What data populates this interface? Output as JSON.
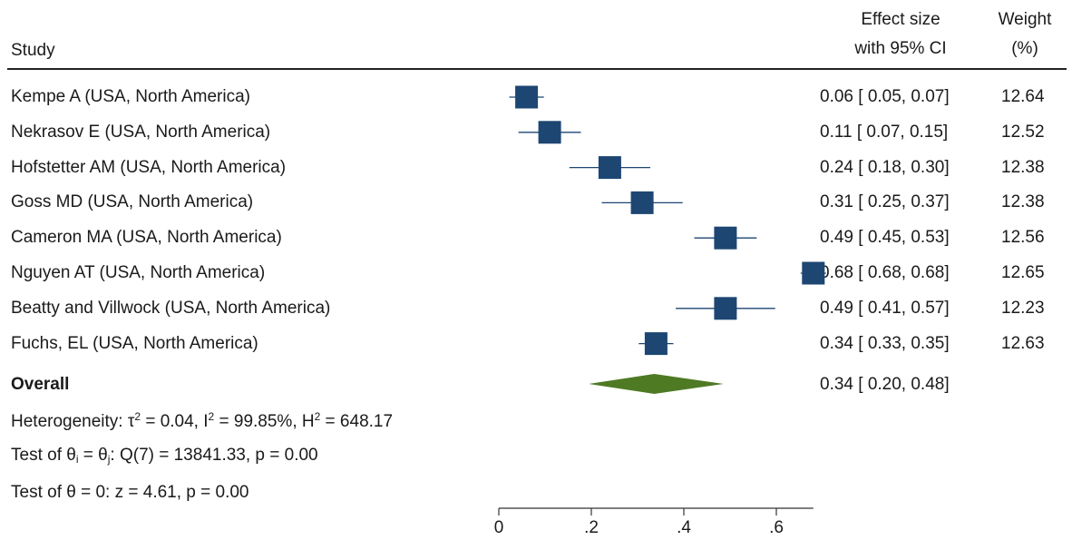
{
  "header": {
    "study_label": "Study",
    "effect_line1": "Effect size",
    "effect_line2": "with 95% CI",
    "weight_line1": "Weight",
    "weight_line2": "(%)"
  },
  "overall": {
    "label": "Overall",
    "ci_text": "0.34 [ 0.20,  0.48]"
  },
  "stats": {
    "heterogeneity_prefix": "Heterogeneity: τ",
    "heterogeneity_tau": " = 0.04, I",
    "heterogeneity_i": " = 99.85%, H",
    "heterogeneity_h": " = 648.17",
    "sup2": "2",
    "test1_prefix": "Test of θ",
    "test1_i": "i",
    "test1_mid": " = θ",
    "test1_j": "j",
    "test1_rest": ": Q(7) = 13841.33, p = 0.00",
    "test2": "Test of θ = 0: z = 4.61, p = 0.00"
  },
  "colors": {
    "marker": "#1d4673",
    "diamond": "#4e7a24",
    "axis": "#333333"
  },
  "chart_data": {
    "type": "forest",
    "title": "",
    "xlabel": "",
    "xlim": [
      0,
      0.68
    ],
    "xticks": [
      0,
      0.2,
      0.4,
      0.6
    ],
    "xtick_labels": [
      "0",
      ".2",
      ".4",
      ".6"
    ],
    "studies": [
      {
        "label": "Kempe A (USA, North America)",
        "es": 0.06,
        "lo": 0.05,
        "hi": 0.07,
        "ci_text": "0.06 [ 0.05,  0.07]",
        "weight": "12.64"
      },
      {
        "label": "Nekrasov E (USA, North America)",
        "es": 0.11,
        "lo": 0.07,
        "hi": 0.15,
        "ci_text": "0.11 [ 0.07,  0.15]",
        "weight": "12.52"
      },
      {
        "label": "Hofstetter AM (USA, North America)",
        "es": 0.24,
        "lo": 0.18,
        "hi": 0.3,
        "ci_text": "0.24 [ 0.18,  0.30]",
        "weight": "12.38"
      },
      {
        "label": "Goss MD (USA, North America)",
        "es": 0.31,
        "lo": 0.25,
        "hi": 0.37,
        "ci_text": "0.31 [ 0.25,  0.37]",
        "weight": "12.38"
      },
      {
        "label": "Cameron MA (USA, North America)",
        "es": 0.49,
        "lo": 0.45,
        "hi": 0.53,
        "ci_text": "0.49 [ 0.45,  0.53]",
        "weight": "12.56"
      },
      {
        "label": "Nguyen AT (USA, North America)",
        "es": 0.68,
        "lo": 0.68,
        "hi": 0.68,
        "ci_text": "0.68 [ 0.68,  0.68]",
        "weight": "12.65"
      },
      {
        "label": "Beatty and Villwock (USA, North America)",
        "es": 0.49,
        "lo": 0.41,
        "hi": 0.57,
        "ci_text": "0.49 [ 0.41,  0.57]",
        "weight": "12.23"
      },
      {
        "label": "Fuchs, EL (USA, North America)",
        "es": 0.34,
        "lo": 0.33,
        "hi": 0.35,
        "ci_text": "0.34 [ 0.33,  0.35]",
        "weight": "12.63"
      }
    ],
    "overall": {
      "es": 0.34,
      "lo": 0.2,
      "hi": 0.48
    }
  }
}
